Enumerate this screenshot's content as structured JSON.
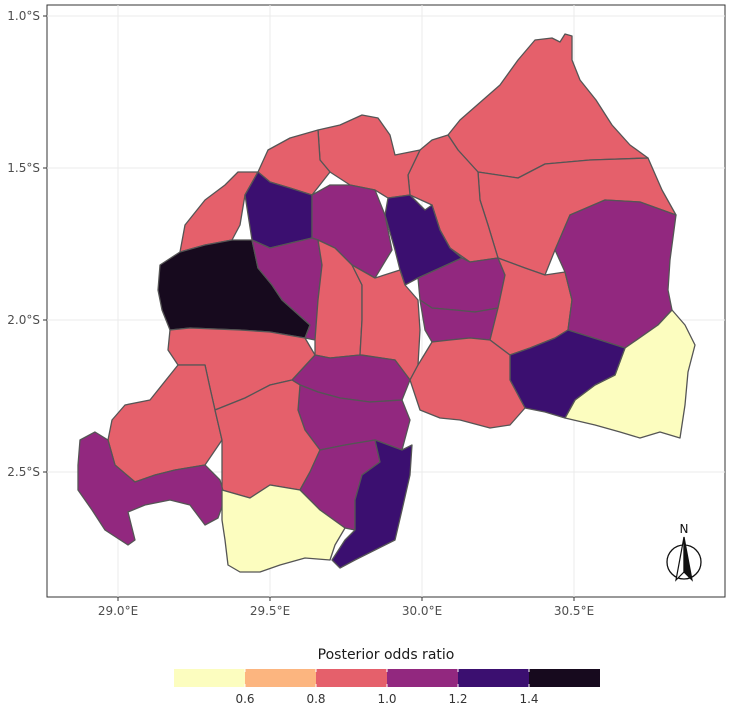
{
  "map": {
    "x_ticks": [
      {
        "value": 29.0,
        "label": "29.0°E"
      },
      {
        "value": 29.5,
        "label": "29.5°E"
      },
      {
        "value": 30.0,
        "label": "30.0°E"
      },
      {
        "value": 30.5,
        "label": "30.5°E"
      }
    ],
    "y_ticks": [
      {
        "value": -1.0,
        "label": "1.0°S"
      },
      {
        "value": -1.5,
        "label": "1.5°S"
      },
      {
        "value": -2.0,
        "label": "2.0°S"
      },
      {
        "value": -2.5,
        "label": "2.5°S"
      }
    ],
    "north_arrow_label": "N",
    "colors": {
      "0.6": "#fcfdbf",
      "0.8": "#fcb57f",
      "1.0": "#e5606b",
      "1.2": "#92287f",
      "1.4": "#3b0f70",
      "1.6": "#170a1e",
      "grid": "#ebebeb",
      "border": "#333333"
    }
  },
  "legend": {
    "title": "Posterior odds ratio",
    "colors": [
      "#fcfdbf",
      "#fcb57f",
      "#e5606b",
      "#92287f",
      "#3b0f70",
      "#170a1e"
    ],
    "breaks": [
      "0.6",
      "0.8",
      "1.0",
      "1.2",
      "1.4"
    ]
  }
}
